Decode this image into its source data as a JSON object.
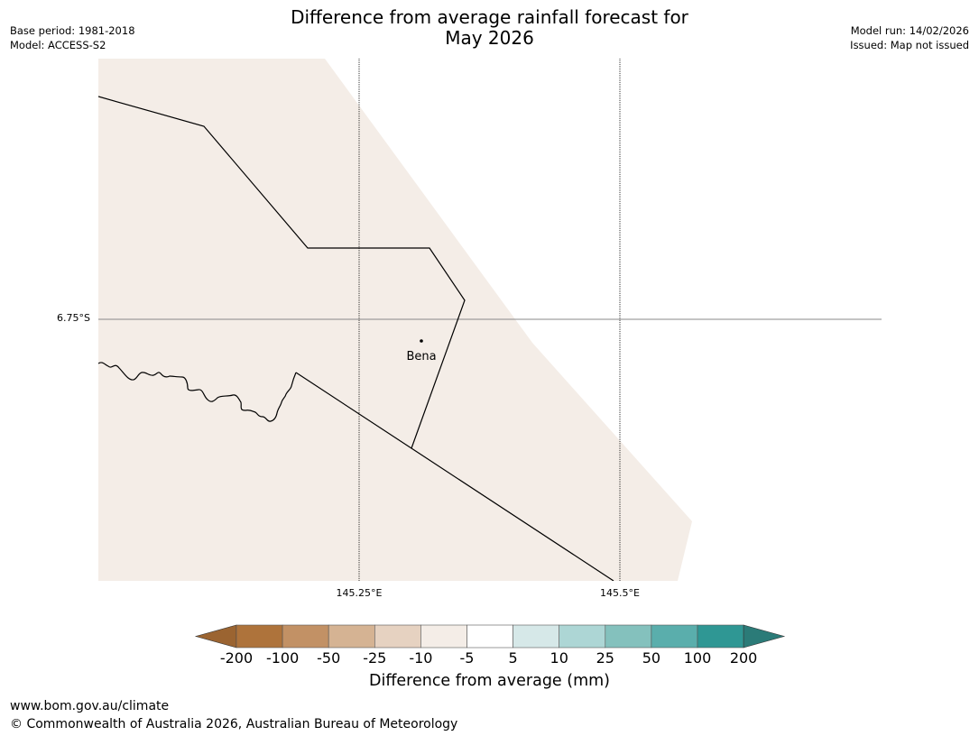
{
  "title_line1": "Difference from average rainfall forecast for",
  "title_line2": "May 2026",
  "meta_left": {
    "base_period": "Base period: 1981-2018",
    "model": "Model: ACCESS-S2"
  },
  "meta_right": {
    "model_run": "Model run: 14/02/2026",
    "issued": "Issued: Map not issued"
  },
  "map": {
    "land_fill_color": "#f4ede7",
    "grid": {
      "latitudes": [
        {
          "label": "6.75°S"
        }
      ],
      "longitudes": [
        {
          "label": "145.25°E"
        },
        {
          "label": "145.5°E"
        }
      ]
    },
    "places": [
      {
        "name": "Bena"
      }
    ]
  },
  "colorbar": {
    "title": "Difference from average (mm)",
    "under_color": "#9b6431",
    "over_color": "#2b7b78",
    "bins": [
      {
        "from": "-200",
        "to": "-100",
        "color": "#ae733b"
      },
      {
        "from": "-100",
        "to": "-50",
        "color": "#c29165"
      },
      {
        "from": "-50",
        "to": "-25",
        "color": "#d5b393"
      },
      {
        "from": "-25",
        "to": "-10",
        "color": "#e6d2c1"
      },
      {
        "from": "-10",
        "to": "-5",
        "color": "#f4ede7"
      },
      {
        "from": "-5",
        "to": "5",
        "color": "#ffffff"
      },
      {
        "from": "5",
        "to": "10",
        "color": "#d6e8e8"
      },
      {
        "from": "10",
        "to": "25",
        "color": "#add6d5"
      },
      {
        "from": "25",
        "to": "50",
        "color": "#84c1bd"
      },
      {
        "from": "50",
        "to": "100",
        "color": "#5aaeac"
      },
      {
        "from": "100",
        "to": "200",
        "color": "#2f9794"
      }
    ],
    "ticks": [
      "-200",
      "-100",
      "-50",
      "-25",
      "-10",
      "-5",
      "5",
      "10",
      "25",
      "50",
      "100",
      "200"
    ]
  },
  "footer": {
    "url": "www.bom.gov.au/climate",
    "copyright": "© Commonwealth of Australia 2026, Australian Bureau of Meteorology"
  }
}
